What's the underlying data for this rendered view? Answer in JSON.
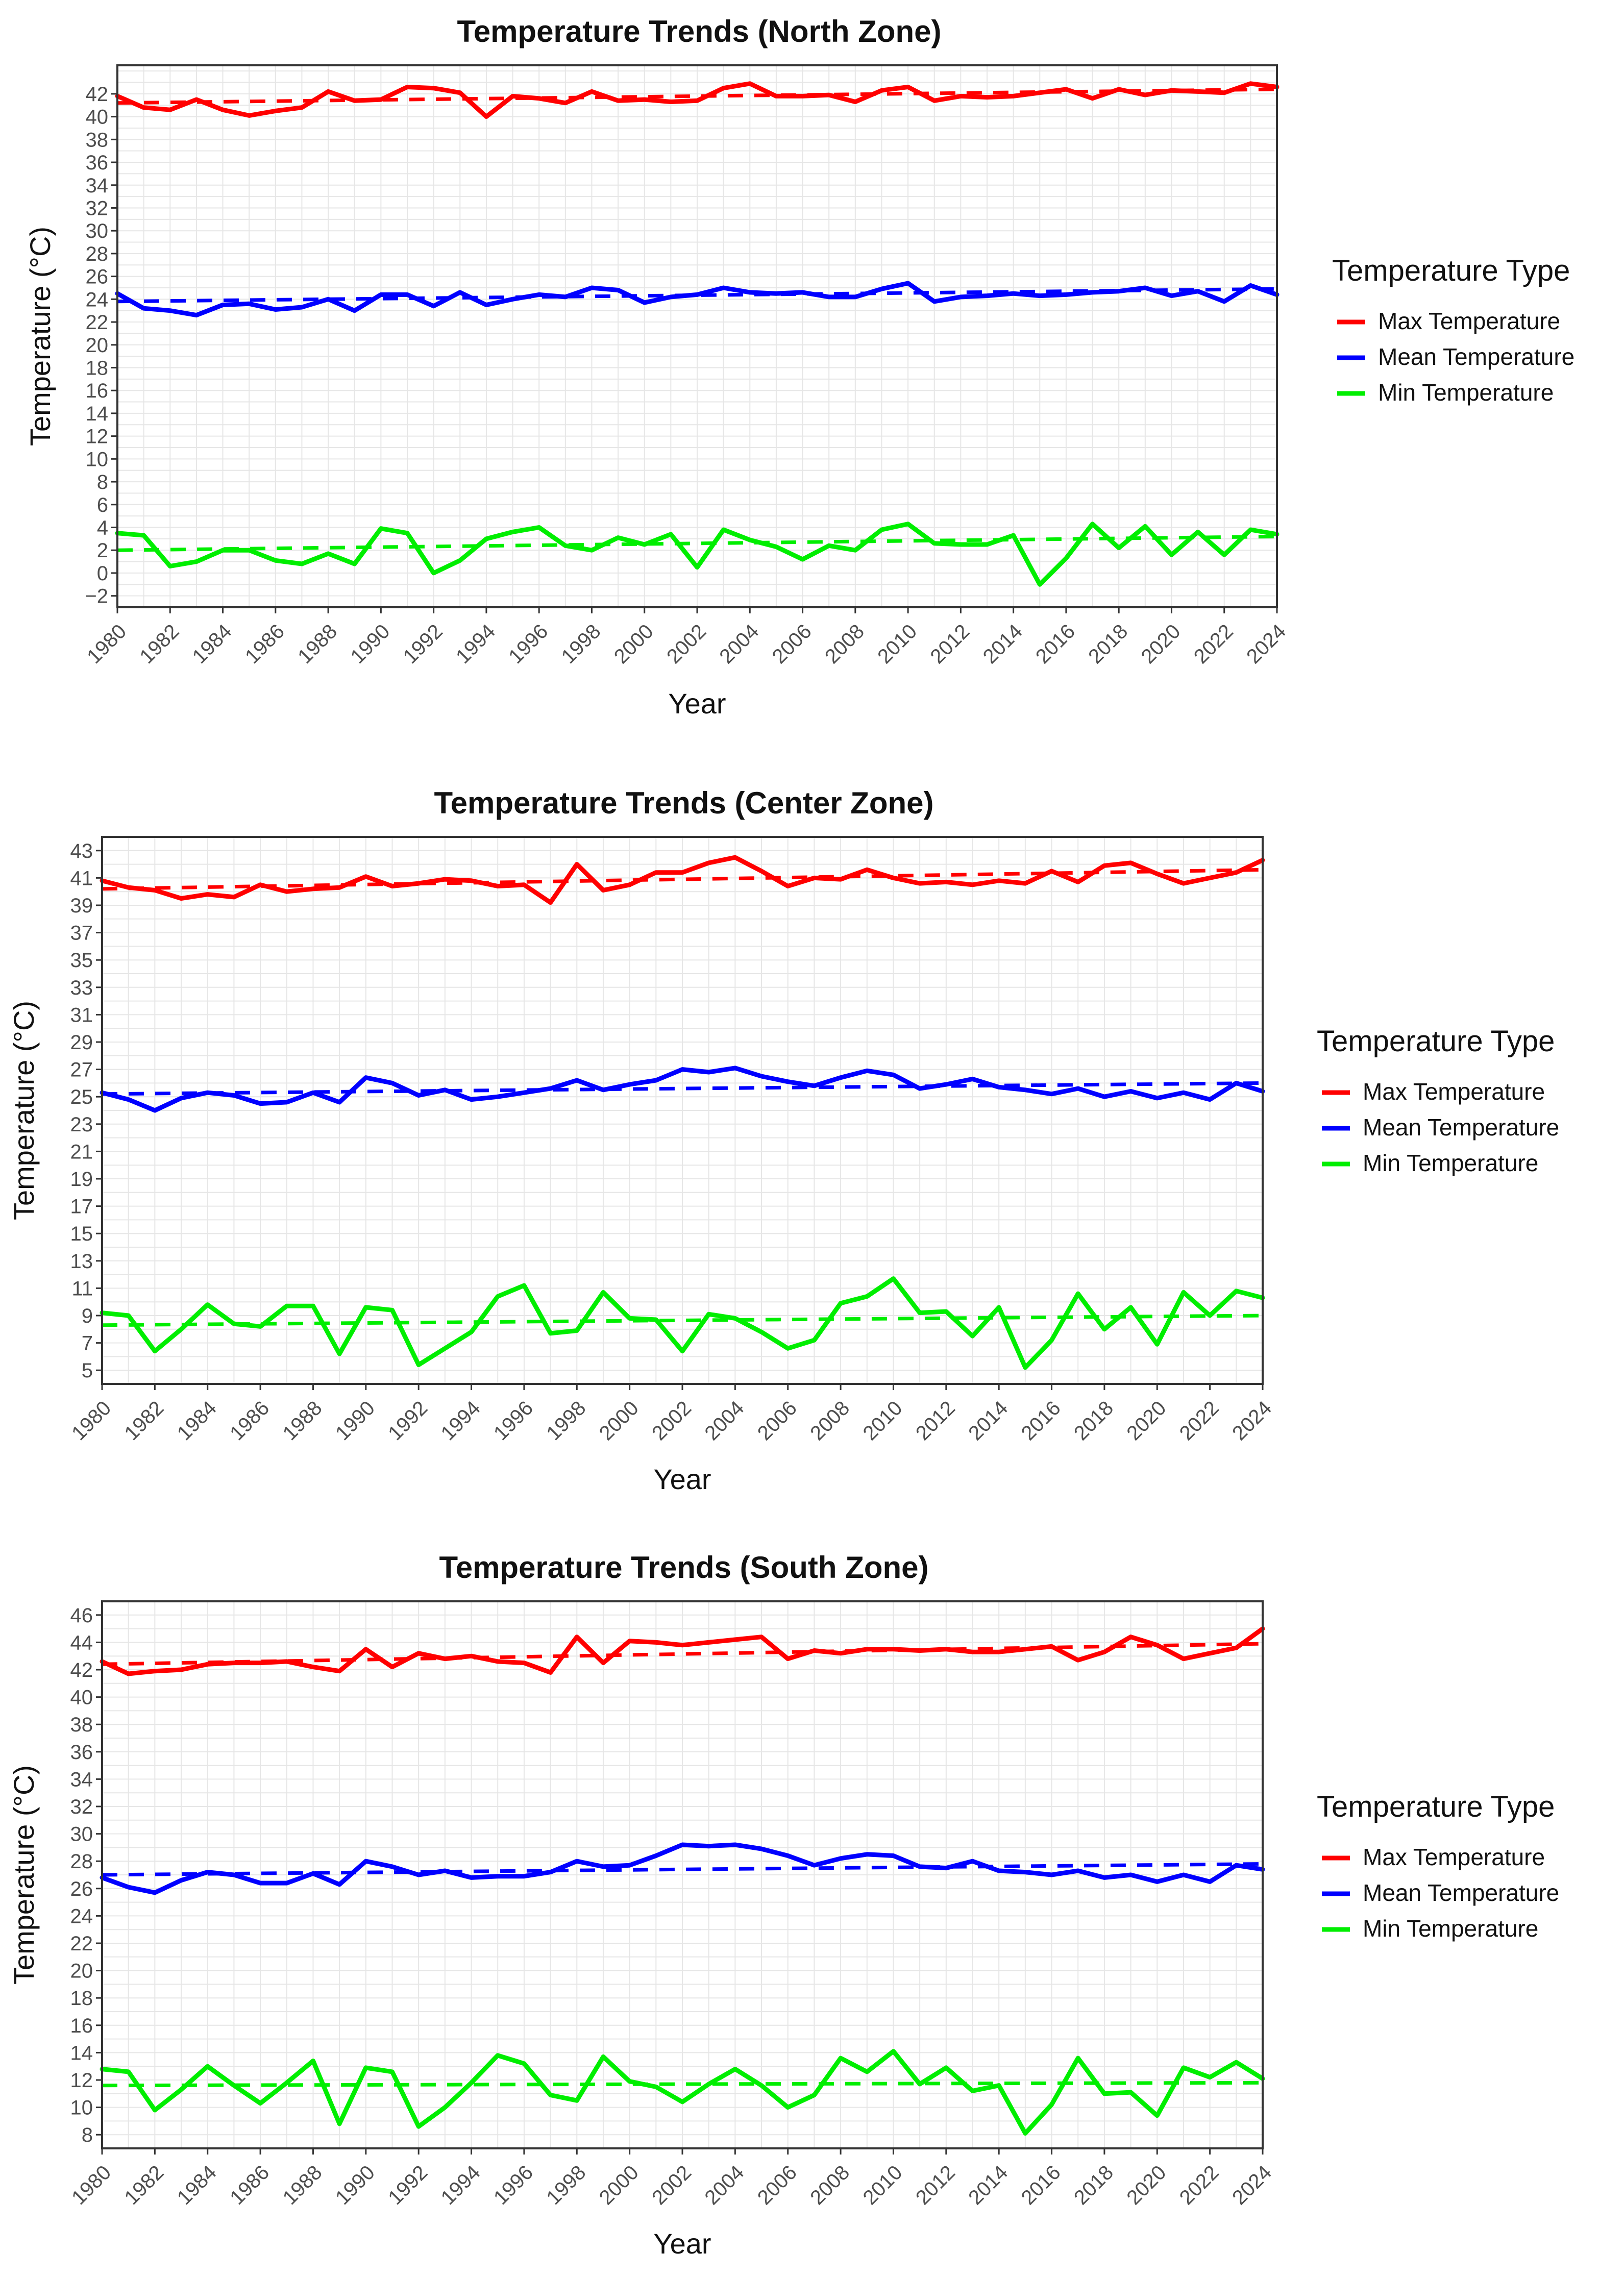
{
  "chart_data": [
    {
      "type": "line",
      "title": "Temperature Trends (North Zone)",
      "xlabel": "Year",
      "ylabel": "Temperature (°C)",
      "ylim": [
        -3,
        44.5
      ],
      "yticks": [
        -2,
        0,
        2,
        4,
        6,
        8,
        10,
        12,
        14,
        16,
        18,
        20,
        22,
        24,
        26,
        28,
        30,
        32,
        34,
        36,
        38,
        40,
        42
      ],
      "ytick_labels": [
        "−2",
        "0",
        "2",
        "4",
        "6",
        "8",
        "10",
        "12",
        "14",
        "16",
        "18",
        "20",
        "22",
        "24",
        "26",
        "28",
        "30",
        "32",
        "34",
        "36",
        "38",
        "40",
        "42"
      ],
      "xlim": [
        1980,
        2024
      ],
      "xticks": [
        "1980",
        "1982",
        "1984",
        "1986",
        "1988",
        "1990",
        "1992",
        "1994",
        "1996",
        "1998",
        "2000",
        "2002",
        "2004",
        "2006",
        "2008",
        "2010",
        "2012",
        "2014",
        "2016",
        "2018",
        "2020",
        "2022",
        "2024"
      ],
      "grid": true,
      "legend": {
        "title": "Temperature Type",
        "position": "right"
      },
      "x": [
        1980,
        1981,
        1982,
        1983,
        1984,
        1985,
        1986,
        1987,
        1988,
        1989,
        1990,
        1991,
        1992,
        1993,
        1994,
        1995,
        1996,
        1997,
        1998,
        1999,
        2000,
        2001,
        2002,
        2003,
        2004,
        2005,
        2006,
        2007,
        2008,
        2009,
        2010,
        2011,
        2012,
        2013,
        2014,
        2015,
        2016,
        2017,
        2018,
        2019,
        2020,
        2021,
        2022,
        2023,
        2024
      ],
      "series": [
        {
          "name": "Max Temperature",
          "color": "#ff0000",
          "values": [
            41.8,
            40.8,
            40.6,
            41.5,
            40.6,
            40.1,
            40.5,
            40.8,
            42.2,
            41.4,
            41.5,
            42.6,
            42.5,
            42.1,
            40.0,
            41.8,
            41.6,
            41.2,
            42.2,
            41.4,
            41.5,
            41.3,
            41.4,
            42.5,
            42.9,
            41.8,
            41.8,
            41.9,
            41.3,
            42.3,
            42.6,
            41.4,
            41.8,
            41.7,
            41.8,
            42.1,
            42.4,
            41.6,
            42.4,
            41.9,
            42.3,
            42.2,
            42.1,
            42.9,
            42.6
          ],
          "trend": [
            41.2,
            42.4
          ]
        },
        {
          "name": "Mean Temperature",
          "color": "#0000ff",
          "values": [
            24.5,
            23.2,
            23.0,
            22.6,
            23.5,
            23.6,
            23.1,
            23.3,
            24.0,
            23.0,
            24.4,
            24.4,
            23.4,
            24.6,
            23.5,
            24.0,
            24.4,
            24.2,
            25.0,
            24.8,
            23.7,
            24.2,
            24.4,
            25.0,
            24.6,
            24.5,
            24.6,
            24.2,
            24.2,
            24.9,
            25.4,
            23.8,
            24.2,
            24.3,
            24.5,
            24.3,
            24.4,
            24.6,
            24.7,
            25.0,
            24.3,
            24.7,
            23.8,
            25.2,
            24.4
          ],
          "trend": [
            23.8,
            24.9
          ]
        },
        {
          "name": "Min Temperature",
          "color": "#00ee00",
          "values": [
            3.5,
            3.3,
            0.6,
            1.0,
            2.0,
            2.0,
            1.1,
            0.8,
            1.7,
            0.8,
            3.9,
            3.5,
            0.0,
            1.1,
            3.0,
            3.6,
            4.0,
            2.4,
            2.0,
            3.1,
            2.5,
            3.4,
            0.5,
            3.8,
            2.9,
            2.3,
            1.2,
            2.4,
            2.0,
            3.8,
            4.3,
            2.6,
            2.5,
            2.5,
            3.3,
            -1.0,
            1.3,
            4.3,
            2.2,
            4.1,
            1.6,
            3.6,
            1.6,
            3.8,
            3.4
          ],
          "trend": [
            2.0,
            3.2
          ]
        }
      ]
    },
    {
      "type": "line",
      "title": "Temperature Trends (Center Zone)",
      "xlabel": "Year",
      "ylabel": "Temperature (°C)",
      "ylim": [
        4,
        44
      ],
      "yticks": [
        5,
        7,
        9,
        11,
        13,
        15,
        17,
        19,
        21,
        23,
        25,
        27,
        29,
        31,
        33,
        35,
        37,
        39,
        41,
        43
      ],
      "ytick_labels": [
        "5",
        "7",
        "9",
        "11",
        "13",
        "15",
        "17",
        "19",
        "21",
        "23",
        "25",
        "27",
        "29",
        "31",
        "33",
        "35",
        "37",
        "39",
        "41",
        "43"
      ],
      "xlim": [
        1980,
        2024
      ],
      "xticks": [
        "1980",
        "1982",
        "1984",
        "1986",
        "1988",
        "1990",
        "1992",
        "1994",
        "1996",
        "1998",
        "2000",
        "2002",
        "2004",
        "2006",
        "2008",
        "2010",
        "2012",
        "2014",
        "2016",
        "2018",
        "2020",
        "2022",
        "2024"
      ],
      "grid": true,
      "legend": {
        "title": "Temperature Type",
        "position": "right"
      },
      "x": [
        1980,
        1981,
        1982,
        1983,
        1984,
        1985,
        1986,
        1987,
        1988,
        1989,
        1990,
        1991,
        1992,
        1993,
        1994,
        1995,
        1996,
        1997,
        1998,
        1999,
        2000,
        2001,
        2002,
        2003,
        2004,
        2005,
        2006,
        2007,
        2008,
        2009,
        2010,
        2011,
        2012,
        2013,
        2014,
        2015,
        2016,
        2017,
        2018,
        2019,
        2020,
        2021,
        2022,
        2023,
        2024
      ],
      "series": [
        {
          "name": "Max Temperature",
          "color": "#ff0000",
          "values": [
            40.8,
            40.3,
            40.1,
            39.5,
            39.8,
            39.6,
            40.5,
            40.0,
            40.2,
            40.3,
            41.1,
            40.4,
            40.6,
            40.9,
            40.8,
            40.4,
            40.5,
            39.2,
            42.0,
            40.1,
            40.5,
            41.4,
            41.4,
            42.1,
            42.5,
            41.5,
            40.4,
            41.0,
            40.9,
            41.6,
            41.0,
            40.6,
            40.7,
            40.5,
            40.8,
            40.6,
            41.5,
            40.7,
            41.9,
            42.1,
            41.3,
            40.6,
            41.0,
            41.4,
            42.3
          ],
          "trend": [
            40.2,
            41.6
          ]
        },
        {
          "name": "Mean Temperature",
          "color": "#0000ff",
          "values": [
            25.3,
            24.8,
            24.0,
            24.9,
            25.3,
            25.1,
            24.5,
            24.6,
            25.3,
            24.6,
            26.4,
            26.0,
            25.1,
            25.5,
            24.8,
            25.0,
            25.3,
            25.6,
            26.2,
            25.5,
            25.9,
            26.2,
            27.0,
            26.8,
            27.1,
            26.5,
            26.1,
            25.8,
            26.4,
            26.9,
            26.6,
            25.6,
            25.9,
            26.3,
            25.7,
            25.5,
            25.2,
            25.6,
            25.0,
            25.4,
            24.9,
            25.3,
            24.8,
            26.0,
            25.4
          ],
          "trend": [
            25.2,
            26.0
          ]
        },
        {
          "name": "Min Temperature",
          "color": "#00ee00",
          "values": [
            9.2,
            9.0,
            6.4,
            8.0,
            9.8,
            8.4,
            8.2,
            9.7,
            9.7,
            6.2,
            9.6,
            9.4,
            5.4,
            6.6,
            7.8,
            10.4,
            11.2,
            7.7,
            7.9,
            10.7,
            8.8,
            8.7,
            6.4,
            9.1,
            8.8,
            7.8,
            6.6,
            7.2,
            9.9,
            10.4,
            11.7,
            9.2,
            9.3,
            7.5,
            9.6,
            5.2,
            7.2,
            10.6,
            8.0,
            9.6,
            6.9,
            10.7,
            9.0,
            10.8,
            10.3
          ],
          "trend": [
            8.3,
            9.0
          ]
        }
      ]
    },
    {
      "type": "line",
      "title": "Temperature Trends (South Zone)",
      "xlabel": "Year",
      "ylabel": "Temperature (°C)",
      "ylim": [
        7,
        47
      ],
      "yticks": [
        8,
        10,
        12,
        14,
        16,
        18,
        20,
        22,
        24,
        26,
        28,
        30,
        32,
        34,
        36,
        38,
        40,
        42,
        44,
        46
      ],
      "ytick_labels": [
        "8",
        "10",
        "12",
        "14",
        "16",
        "18",
        "20",
        "22",
        "24",
        "26",
        "28",
        "30",
        "32",
        "34",
        "36",
        "38",
        "40",
        "42",
        "44",
        "46"
      ],
      "xlim": [
        1980,
        2024
      ],
      "xticks": [
        "1980",
        "1982",
        "1984",
        "1986",
        "1988",
        "1990",
        "1992",
        "1994",
        "1996",
        "1998",
        "2000",
        "2002",
        "2004",
        "2006",
        "2008",
        "2010",
        "2012",
        "2014",
        "2016",
        "2018",
        "2020",
        "2022",
        "2024"
      ],
      "grid": true,
      "legend": {
        "title": "Temperature Type",
        "position": "right"
      },
      "x": [
        1980,
        1981,
        1982,
        1983,
        1984,
        1985,
        1986,
        1987,
        1988,
        1989,
        1990,
        1991,
        1992,
        1993,
        1994,
        1995,
        1996,
        1997,
        1998,
        1999,
        2000,
        2001,
        2002,
        2003,
        2004,
        2005,
        2006,
        2007,
        2008,
        2009,
        2010,
        2011,
        2012,
        2013,
        2014,
        2015,
        2016,
        2017,
        2018,
        2019,
        2020,
        2021,
        2022,
        2023,
        2024
      ],
      "series": [
        {
          "name": "Max Temperature",
          "color": "#ff0000",
          "values": [
            42.6,
            41.7,
            41.9,
            42.0,
            42.4,
            42.5,
            42.5,
            42.6,
            42.2,
            41.9,
            43.5,
            42.2,
            43.2,
            42.8,
            43.0,
            42.6,
            42.5,
            41.8,
            44.4,
            42.5,
            44.1,
            44.0,
            43.8,
            44.0,
            44.2,
            44.4,
            42.8,
            43.4,
            43.2,
            43.5,
            43.5,
            43.4,
            43.5,
            43.3,
            43.3,
            43.5,
            43.7,
            42.7,
            43.3,
            44.4,
            43.8,
            42.8,
            43.2,
            43.6,
            45.0
          ],
          "trend": [
            42.4,
            43.9
          ]
        },
        {
          "name": "Mean Temperature",
          "color": "#0000ff",
          "values": [
            26.8,
            26.1,
            25.7,
            26.6,
            27.2,
            27.0,
            26.4,
            26.4,
            27.1,
            26.3,
            28.0,
            27.6,
            27.0,
            27.3,
            26.8,
            26.9,
            26.9,
            27.2,
            28.0,
            27.6,
            27.7,
            28.4,
            29.2,
            29.1,
            29.2,
            28.9,
            28.4,
            27.7,
            28.2,
            28.5,
            28.4,
            27.6,
            27.5,
            28.0,
            27.3,
            27.2,
            27.0,
            27.3,
            26.8,
            27.0,
            26.5,
            27.0,
            26.5,
            27.7,
            27.4
          ],
          "trend": [
            27.0,
            27.8
          ]
        },
        {
          "name": "Min Temperature",
          "color": "#00ee00",
          "values": [
            12.8,
            12.6,
            9.8,
            11.3,
            13.0,
            11.6,
            10.3,
            11.8,
            13.4,
            8.8,
            12.9,
            12.6,
            8.6,
            10.0,
            11.8,
            13.8,
            13.2,
            10.9,
            10.5,
            13.7,
            11.9,
            11.5,
            10.4,
            11.7,
            12.8,
            11.6,
            10.0,
            10.9,
            13.6,
            12.6,
            14.1,
            11.7,
            12.9,
            11.2,
            11.6,
            8.1,
            10.2,
            13.6,
            11.0,
            11.1,
            9.4,
            12.9,
            12.2,
            13.3,
            12.1
          ],
          "trend": [
            11.6,
            11.8
          ]
        }
      ]
    }
  ]
}
